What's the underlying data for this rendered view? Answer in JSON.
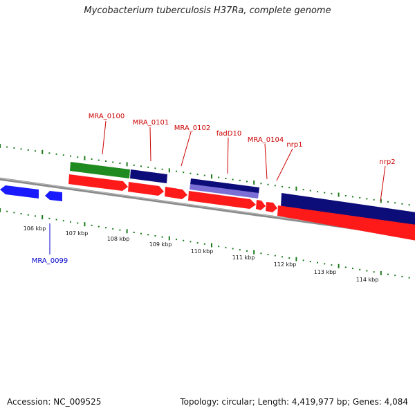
{
  "header": {
    "title": "Mycobacterium tuberculosis H37Ra, complete genome"
  },
  "footer": {
    "accession": "Accession: NC_009525",
    "summary": "Topology: circular; Length: 4,419,977 bp; Genes: 4,084"
  },
  "colors": {
    "backbone": "#8a8a8a",
    "forward_gene": "#ff1a1a",
    "reverse_gene": "#1a1aff",
    "dark_blue": "#0d0d7a",
    "green": "#1f8a1f",
    "lavender": "#7b6fd6",
    "ticks": "#1a7a1a",
    "label_red": "#cc0000",
    "label_blue": "#0000cc"
  },
  "scale_labels": [
    "106 kbp",
    "107 kbp",
    "108 kbp",
    "109 kbp",
    "110 kbp",
    "111 kbp",
    "112 kbp",
    "113 kbp",
    "114 kbp"
  ],
  "gene_labels": [
    {
      "text": "MRA_0099",
      "color": "blue"
    },
    {
      "text": "MRA_0100",
      "color": "red"
    },
    {
      "text": "MRA_0101",
      "color": "red"
    },
    {
      "text": "MRA_0102",
      "color": "red"
    },
    {
      "text": "fadD10",
      "color": "red"
    },
    {
      "text": "MRA_0104",
      "color": "red"
    },
    {
      "text": "nrp1",
      "color": "red"
    },
    {
      "text": "nrp2",
      "color": "red"
    }
  ]
}
